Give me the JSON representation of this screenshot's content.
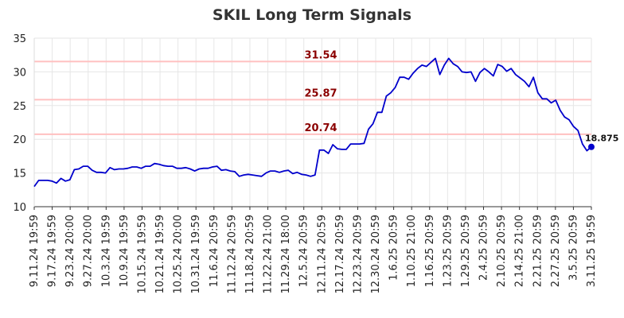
{
  "chart_data": {
    "type": "line",
    "title": "SKIL Long Term Signals",
    "xlabel": "",
    "ylabel": "",
    "ylim": [
      10,
      35
    ],
    "yticks": [
      10,
      15,
      20,
      25,
      30,
      35
    ],
    "grid": true,
    "line_color": "#0000cc",
    "level_line_color": "#ffc0c0",
    "level_label_color": "#8b0000",
    "x_tick_labels": [
      "9.11.24 19:59",
      "9.17.24 19:59",
      "9.23.24 20:00",
      "9.27.24 20:00",
      "10.3.24 19:59",
      "10.9.24 19:59",
      "10.15.24 19:59",
      "10.21.24 19:59",
      "10.25.24 20:00",
      "10.31.24 19:59",
      "11.6.24 20:59",
      "11.12.24 20:59",
      "11.18.24 20:59",
      "11.22.24 21:00",
      "11.29.24 18:00",
      "12.5.24 20:59",
      "12.11.24 20:59",
      "12.17.24 20:59",
      "12.23.24 20:59",
      "12.30.24 20:59",
      "1.6.25 20:59",
      "1.10.25 21:00",
      "1.16.25 20:59",
      "1.23.25 20:59",
      "1.29.25 20:59",
      "2.4.25 20:59",
      "2.10.25 20:59",
      "2.14.25 21:00",
      "2.21.25 20:59",
      "2.27.25 20:59",
      "3.5.25 20:59",
      "3.11.25 19:59"
    ],
    "levels": [
      {
        "value": 31.54,
        "label": "31.54"
      },
      {
        "value": 25.87,
        "label": "25.87"
      },
      {
        "value": 20.74,
        "label": "20.74"
      }
    ],
    "last_value": {
      "value": 18.875,
      "label": "18.875"
    },
    "series": [
      {
        "values": [
          13.0,
          13.9,
          13.9,
          13.9,
          13.8,
          13.5,
          14.2,
          13.8,
          14.0,
          15.5,
          15.6,
          16.0,
          16.0,
          15.4,
          15.1,
          15.1,
          15.0,
          15.8,
          15.5,
          15.6,
          15.6,
          15.7,
          15.9,
          15.9,
          15.7,
          16.0,
          16.0,
          16.4,
          16.3,
          16.1,
          16.0,
          16.0,
          15.7,
          15.7,
          15.8,
          15.6,
          15.3,
          15.6,
          15.7,
          15.7,
          15.9,
          16.0,
          15.4,
          15.5,
          15.3,
          15.2,
          14.5,
          14.7,
          14.8,
          14.7,
          14.6,
          14.5,
          15.0,
          15.3,
          15.3,
          15.1,
          15.3,
          15.4,
          14.9,
          15.1,
          14.8,
          14.7,
          14.5,
          14.7,
          18.4,
          18.4,
          17.9,
          19.2,
          18.6,
          18.5,
          18.5,
          19.3,
          19.3,
          19.3,
          19.4,
          21.5,
          22.3,
          24.0,
          24.0,
          26.4,
          26.9,
          27.7,
          29.2,
          29.2,
          28.9,
          29.8,
          30.5,
          31.0,
          30.8,
          31.4,
          32.0,
          29.6,
          31.0,
          32.0,
          31.2,
          30.8,
          30.0,
          29.9,
          30.0,
          28.6,
          29.9,
          30.5,
          30.0,
          29.4,
          31.1,
          30.8,
          30.1,
          30.5,
          29.6,
          29.1,
          28.6,
          27.8,
          29.2,
          26.9,
          26.0,
          26.0,
          25.4,
          25.8,
          24.3,
          23.3,
          22.9,
          21.9,
          21.3,
          19.3,
          18.3,
          18.875
        ]
      }
    ]
  }
}
